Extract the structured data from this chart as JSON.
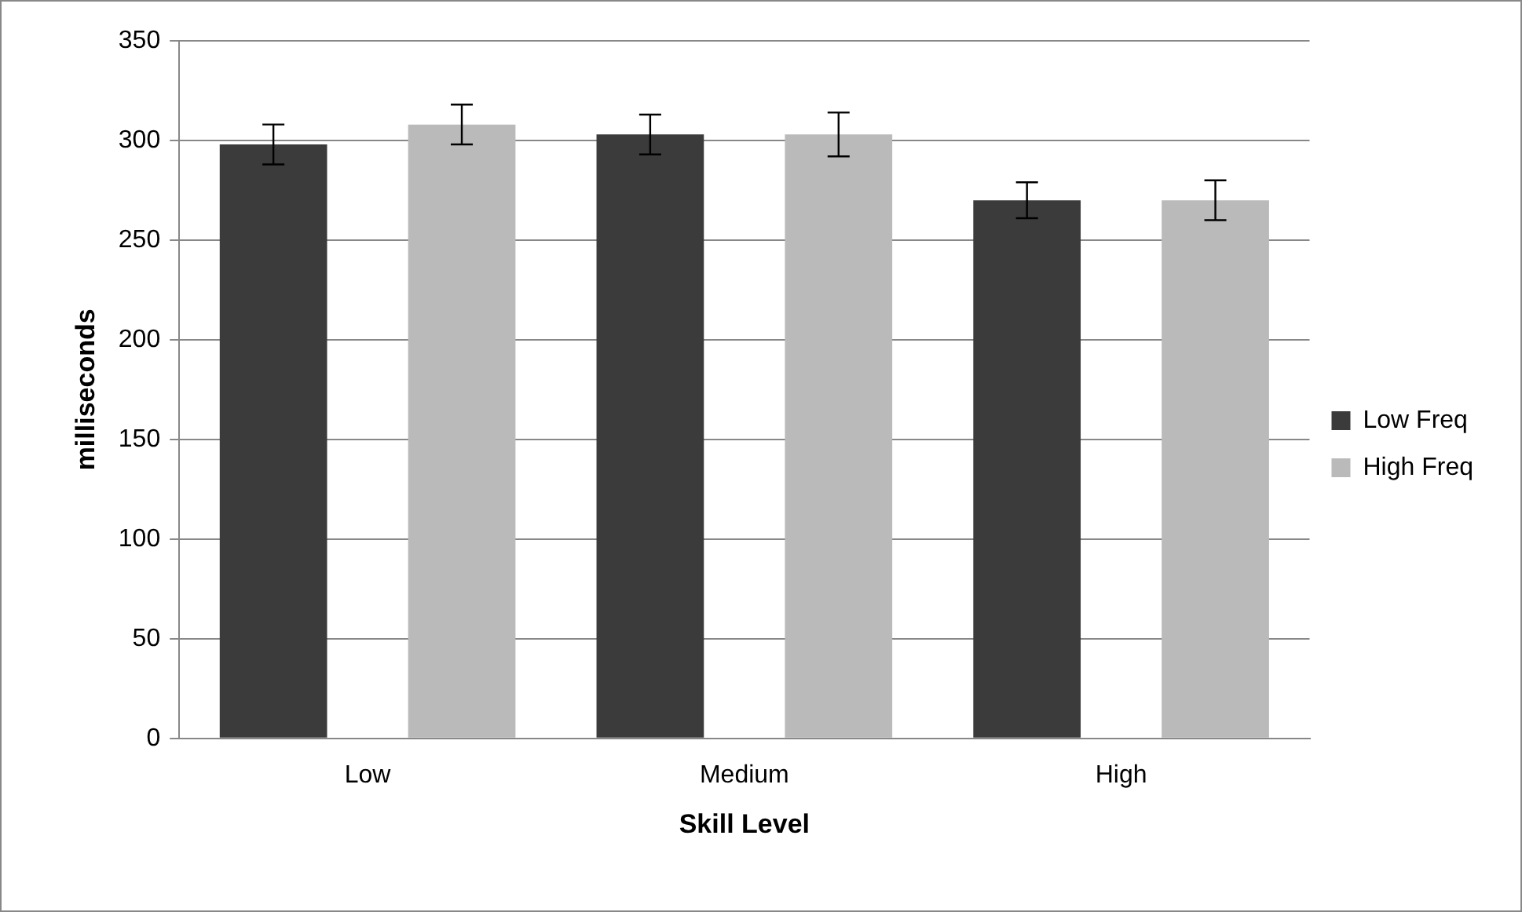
{
  "chart_data": {
    "type": "bar",
    "xlabel": "Skill Level",
    "ylabel": "milliseconds",
    "categories": [
      "Low",
      "Medium",
      "High"
    ],
    "series": [
      {
        "name": "Low Freq",
        "color": "#3b3b3b",
        "values": [
          298,
          303,
          270
        ],
        "errors": [
          10,
          10,
          9
        ]
      },
      {
        "name": "High Freq",
        "color": "#bababa",
        "values": [
          308,
          303,
          270
        ],
        "errors": [
          10,
          11,
          10
        ]
      }
    ],
    "ylim": [
      0,
      350
    ],
    "yticks": [
      0,
      50,
      100,
      150,
      200,
      250,
      300,
      350
    ],
    "grid": "y",
    "legend": "right"
  }
}
